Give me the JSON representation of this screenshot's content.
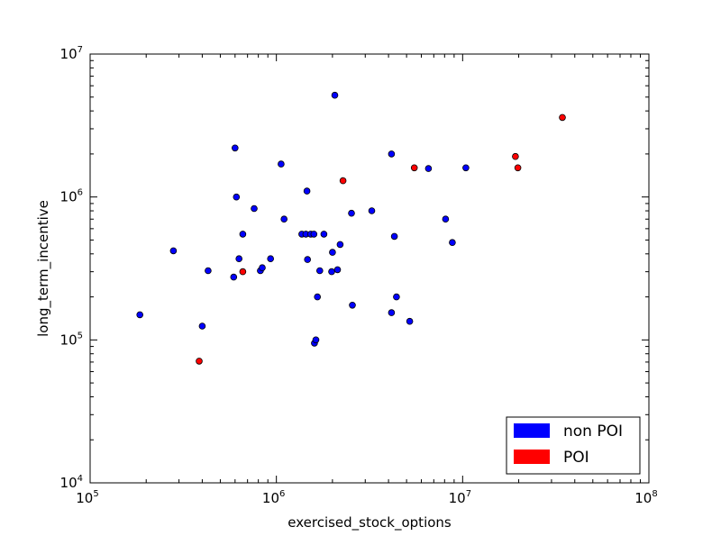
{
  "chart_data": {
    "type": "scatter",
    "title": "",
    "xlabel": "exercised_stock_options",
    "ylabel": "long_term_incentive",
    "xscale": "log",
    "yscale": "log",
    "xlim": [
      100000,
      100000000
    ],
    "ylim": [
      10000,
      10000000
    ],
    "grid": false,
    "legend_position": "lower-right",
    "x_tick_labels": [
      {
        "base": "10",
        "exp": "5"
      },
      {
        "base": "10",
        "exp": "6"
      },
      {
        "base": "10",
        "exp": "7"
      },
      {
        "base": "10",
        "exp": "8"
      }
    ],
    "y_tick_labels": [
      {
        "base": "10",
        "exp": "4"
      },
      {
        "base": "10",
        "exp": "5"
      },
      {
        "base": "10",
        "exp": "6"
      },
      {
        "base": "10",
        "exp": "7"
      }
    ],
    "series": [
      {
        "name": "non POI",
        "color": "#0000ff",
        "points": [
          [
            185000,
            150000
          ],
          [
            280000,
            420000
          ],
          [
            400000,
            125000
          ],
          [
            430000,
            305000
          ],
          [
            590000,
            275000
          ],
          [
            600000,
            2200000
          ],
          [
            610000,
            1000000
          ],
          [
            630000,
            370000
          ],
          [
            660000,
            550000
          ],
          [
            760000,
            830000
          ],
          [
            820000,
            305000
          ],
          [
            840000,
            320000
          ],
          [
            930000,
            370000
          ],
          [
            1060000,
            1700000
          ],
          [
            1100000,
            700000
          ],
          [
            1370000,
            550000
          ],
          [
            1440000,
            550000
          ],
          [
            1460000,
            1100000
          ],
          [
            1470000,
            365000
          ],
          [
            1530000,
            550000
          ],
          [
            1590000,
            550000
          ],
          [
            1600000,
            95000
          ],
          [
            1630000,
            100000
          ],
          [
            1660000,
            200000
          ],
          [
            1710000,
            305000
          ],
          [
            1800000,
            550000
          ],
          [
            1980000,
            300000
          ],
          [
            2000000,
            410000
          ],
          [
            2060000,
            5150000
          ],
          [
            2130000,
            310000
          ],
          [
            2200000,
            465000
          ],
          [
            2530000,
            770000
          ],
          [
            2560000,
            175000
          ],
          [
            3250000,
            800000
          ],
          [
            4150000,
            2000000
          ],
          [
            4150000,
            155000
          ],
          [
            4300000,
            530000
          ],
          [
            4410000,
            200000
          ],
          [
            5200000,
            135000
          ],
          [
            6550000,
            1580000
          ],
          [
            8100000,
            700000
          ],
          [
            8800000,
            480000
          ],
          [
            10400000,
            1600000
          ]
        ]
      },
      {
        "name": "POI",
        "color": "#ff0000",
        "points": [
          [
            385000,
            71000
          ],
          [
            660000,
            300000
          ],
          [
            2280000,
            1300000
          ],
          [
            5500000,
            1600000
          ],
          [
            19200000,
            1920000
          ],
          [
            19800000,
            1600000
          ],
          [
            34300000,
            3600000
          ]
        ]
      }
    ]
  }
}
